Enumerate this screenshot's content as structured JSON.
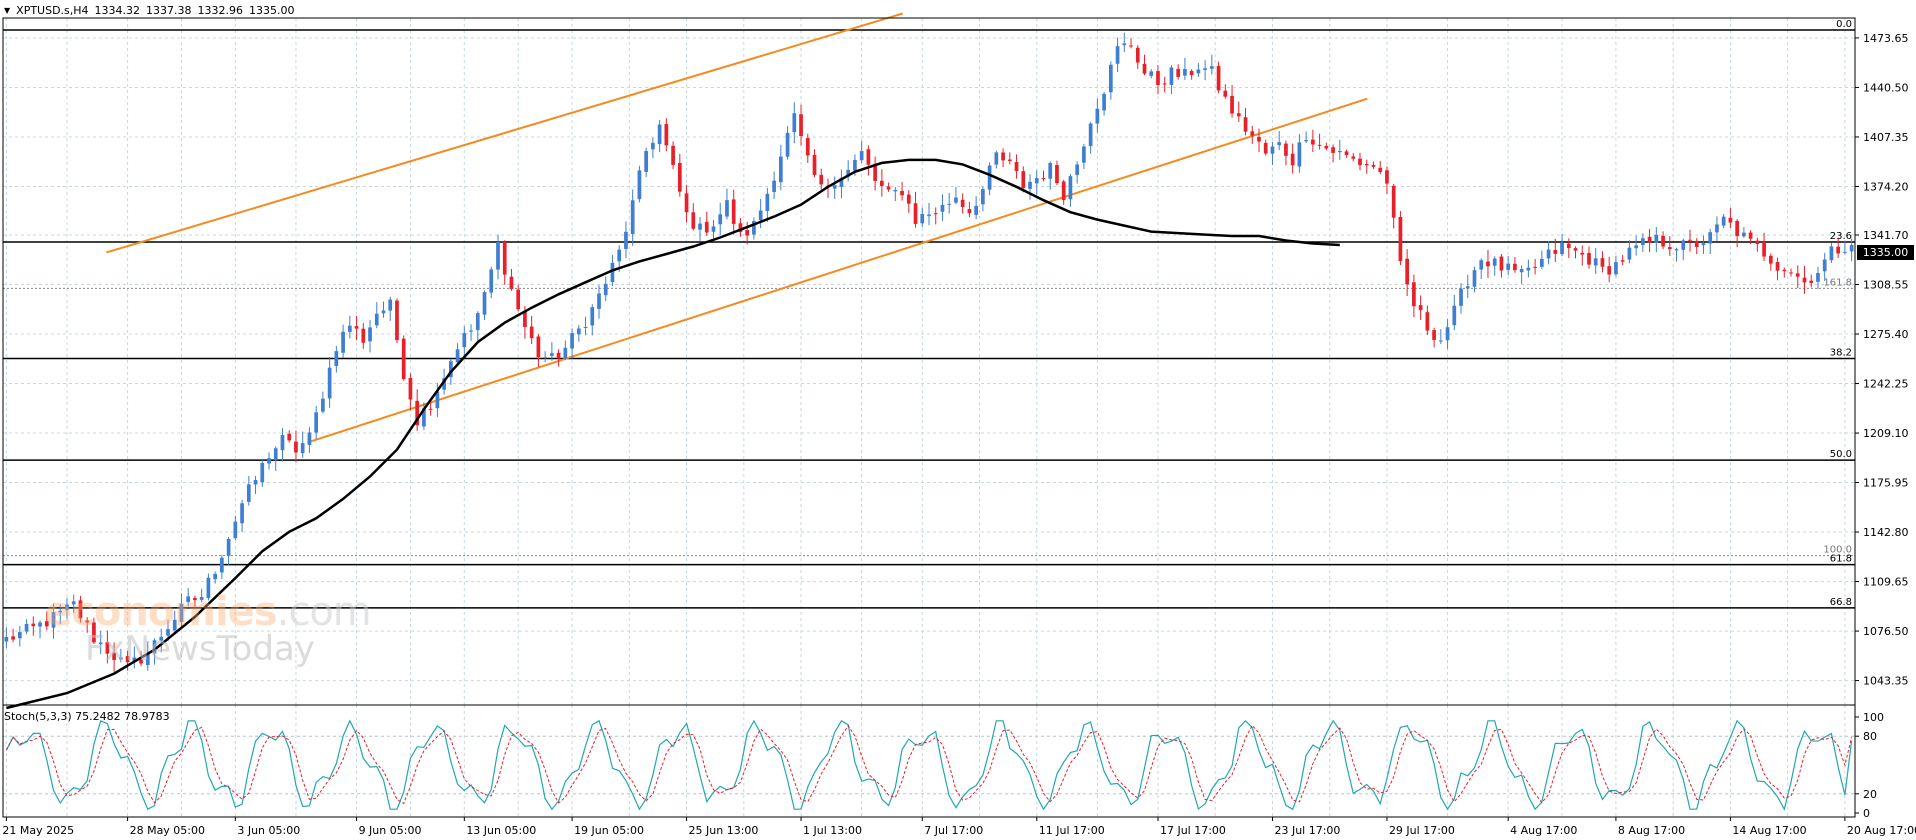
{
  "header": {
    "symbol": "XPTUSD.s,H4",
    "open": "1334.32",
    "high": "1337.38",
    "low": "1332.96",
    "close": "1335.00"
  },
  "current_price_label": "1335.00",
  "watermark": {
    "brand": "economies",
    "suffix": ".com",
    "sub": "FxNewsToday"
  },
  "chart_data": [
    {
      "type": "candlestick",
      "symbol": "XPTUSD.s",
      "timeframe": "H4",
      "ylim": [
        1027,
        1487
      ],
      "y_ticks": [
        "1473.65",
        "1440.50",
        "1407.35",
        "1374.20",
        "1341.70",
        "1308.55",
        "1275.40",
        "1242.25",
        "1209.10",
        "1175.95",
        "1142.80",
        "1109.65",
        "1076.50",
        "1043.35"
      ],
      "x_ticks": [
        "21 May 2025",
        "28 May 05:00",
        "3 Jun 05:00",
        "9 Jun 05:00",
        "13 Jun 05:00",
        "19 Jun 05:00",
        "25 Jun 13:00",
        "1 Jul 13:00",
        "7 Jul 17:00",
        "11 Jul 17:00",
        "17 Jul 17:00",
        "23 Jul 17:00",
        "29 Jul 17:00",
        "4 Aug 17:00",
        "8 Aug 17:00",
        "14 Aug 17:00",
        "20 Aug 17:00"
      ],
      "last_close": 1335.0,
      "close_path": [
        [
          0,
          1071
        ],
        [
          4,
          1078
        ],
        [
          8,
          1088
        ],
        [
          10,
          1094
        ],
        [
          13,
          1072
        ],
        [
          16,
          1060
        ],
        [
          18,
          1052
        ],
        [
          21,
          1062
        ],
        [
          24,
          1080
        ],
        [
          27,
          1096
        ],
        [
          29,
          1100
        ],
        [
          31,
          1118
        ],
        [
          33,
          1140
        ],
        [
          35,
          1162
        ],
        [
          37,
          1178
        ],
        [
          39,
          1195
        ],
        [
          41,
          1204
        ],
        [
          43,
          1198
        ],
        [
          45,
          1206
        ],
        [
          47,
          1236
        ],
        [
          49,
          1268
        ],
        [
          51,
          1282
        ],
        [
          53,
          1272
        ],
        [
          55,
          1290
        ],
        [
          57,
          1294
        ],
        [
          59,
          1250
        ],
        [
          61,
          1218
        ],
        [
          63,
          1230
        ],
        [
          65,
          1248
        ],
        [
          67,
          1268
        ],
        [
          69,
          1278
        ],
        [
          71,
          1300
        ],
        [
          73,
          1335
        ],
        [
          75,
          1305
        ],
        [
          77,
          1280
        ],
        [
          79,
          1262
        ],
        [
          81,
          1258
        ],
        [
          83,
          1266
        ],
        [
          85,
          1278
        ],
        [
          87,
          1292
        ],
        [
          89,
          1310
        ],
        [
          91,
          1330
        ],
        [
          93,
          1362
        ],
        [
          95,
          1398
        ],
        [
          97,
          1415
        ],
        [
          99,
          1385
        ],
        [
          101,
          1355
        ],
        [
          103,
          1345
        ],
        [
          105,
          1350
        ],
        [
          107,
          1362
        ],
        [
          109,
          1340
        ],
        [
          111,
          1348
        ],
        [
          113,
          1370
        ],
        [
          115,
          1396
        ],
        [
          117,
          1420
        ],
        [
          119,
          1390
        ],
        [
          121,
          1372
        ],
        [
          123,
          1380
        ],
        [
          125,
          1385
        ],
        [
          127,
          1396
        ],
        [
          129,
          1378
        ],
        [
          131,
          1368
        ],
        [
          133,
          1372
        ],
        [
          135,
          1352
        ],
        [
          137,
          1356
        ],
        [
          139,
          1360
        ],
        [
          141,
          1368
        ],
        [
          143,
          1358
        ],
        [
          145,
          1372
        ],
        [
          147,
          1395
        ],
        [
          149,
          1388
        ],
        [
          151,
          1375
        ],
        [
          153,
          1380
        ],
        [
          155,
          1386
        ],
        [
          157,
          1370
        ],
        [
          159,
          1390
        ],
        [
          161,
          1420
        ],
        [
          163,
          1440
        ],
        [
          165,
          1466
        ],
        [
          167,
          1470
        ],
        [
          169,
          1450
        ],
        [
          171,
          1444
        ],
        [
          173,
          1450
        ],
        [
          175,
          1448
        ],
        [
          177,
          1455
        ],
        [
          179,
          1450
        ],
        [
          181,
          1432
        ],
        [
          183,
          1418
        ],
        [
          185,
          1408
        ],
        [
          187,
          1396
        ],
        [
          189,
          1402
        ],
        [
          191,
          1392
        ],
        [
          193,
          1410
        ],
        [
          195,
          1402
        ],
        [
          197,
          1398
        ],
        [
          199,
          1394
        ],
        [
          201,
          1390
        ],
        [
          203,
          1388
        ],
        [
          205,
          1378
        ],
        [
          207,
          1320
        ],
        [
          209,
          1295
        ],
        [
          211,
          1280
        ],
        [
          213,
          1272
        ],
        [
          215,
          1290
        ],
        [
          217,
          1312
        ],
        [
          219,
          1326
        ],
        [
          221,
          1322
        ],
        [
          223,
          1318
        ],
        [
          225,
          1314
        ],
        [
          227,
          1320
        ],
        [
          229,
          1328
        ],
        [
          231,
          1334
        ],
        [
          233,
          1330
        ],
        [
          235,
          1326
        ],
        [
          237,
          1318
        ],
        [
          239,
          1322
        ],
        [
          241,
          1330
        ],
        [
          243,
          1335
        ],
        [
          245,
          1338
        ],
        [
          247,
          1336
        ],
        [
          249,
          1334
        ],
        [
          251,
          1336
        ],
        [
          253,
          1340
        ],
        [
          255,
          1352
        ],
        [
          257,
          1344
        ],
        [
          259,
          1336
        ],
        [
          261,
          1330
        ],
        [
          263,
          1322
        ],
        [
          265,
          1318
        ],
        [
          267,
          1310
        ],
        [
          269,
          1318
        ],
        [
          271,
          1330
        ],
        [
          273,
          1335
        ]
      ],
      "moving_average": {
        "color": "#000000",
        "points": [
          [
            0,
            1025
          ],
          [
            9,
            1035
          ],
          [
            16,
            1048
          ],
          [
            22,
            1064
          ],
          [
            28,
            1086
          ],
          [
            34,
            1112
          ],
          [
            38,
            1130
          ],
          [
            42,
            1143
          ],
          [
            46,
            1152
          ],
          [
            50,
            1165
          ],
          [
            54,
            1180
          ],
          [
            58,
            1198
          ],
          [
            62,
            1225
          ],
          [
            66,
            1250
          ],
          [
            70,
            1270
          ],
          [
            74,
            1283
          ],
          [
            78,
            1293
          ],
          [
            82,
            1302
          ],
          [
            86,
            1310
          ],
          [
            90,
            1318
          ],
          [
            94,
            1324
          ],
          [
            98,
            1329
          ],
          [
            102,
            1334
          ],
          [
            106,
            1340
          ],
          [
            110,
            1347
          ],
          [
            114,
            1354
          ],
          [
            118,
            1362
          ],
          [
            122,
            1374
          ],
          [
            126,
            1384
          ],
          [
            130,
            1390
          ],
          [
            134,
            1392
          ],
          [
            138,
            1392
          ],
          [
            142,
            1389
          ],
          [
            146,
            1382
          ],
          [
            150,
            1374
          ],
          [
            154,
            1365
          ],
          [
            158,
            1357
          ],
          [
            162,
            1352
          ],
          [
            166,
            1348
          ],
          [
            170,
            1344
          ],
          [
            174,
            1343
          ],
          [
            178,
            1342
          ],
          [
            182,
            1341
          ],
          [
            186,
            1341
          ],
          [
            190,
            1338
          ],
          [
            194,
            1336
          ],
          [
            198,
            1335
          ]
        ]
      },
      "channel_lines": {
        "color": "#f58a1f",
        "lines": [
          {
            "from": [
              0,
              1330
            ],
            "to": [
              142,
              1490
            ]
          },
          {
            "from": [
              30,
              1203
            ],
            "to": [
              211,
              1433
            ]
          }
        ]
      },
      "fibonacci_levels": [
        {
          "label": "0.0",
          "price": 1479,
          "style": "solid"
        },
        {
          "label": "23.6",
          "price": 1337,
          "style": "solid"
        },
        {
          "label": "161.8",
          "price": 1306,
          "style": "dotted"
        },
        {
          "label": "38.2",
          "price": 1259,
          "style": "solid"
        },
        {
          "label": "50.0",
          "price": 1191,
          "style": "solid"
        },
        {
          "label": "100.0",
          "price": 1127,
          "style": "dotted"
        },
        {
          "label": "61.8",
          "price": 1121,
          "style": "solid"
        },
        {
          "label": "66.8",
          "price": 1092,
          "style": "solid"
        }
      ],
      "colors": {
        "up": "#3f7fd1",
        "down": "#e8202a",
        "grid": "#c8d8e0"
      }
    },
    {
      "type": "line",
      "title": "Stoch(5,3,3) 75.2482 78.9783",
      "indicator": "Stoch(5,3,3)",
      "k_value": 75.2482,
      "d_value": 78.9783,
      "ylim": [
        0,
        100
      ],
      "y_ticks": [
        "100",
        "80",
        "20",
        "0"
      ],
      "levels": [
        80,
        20
      ],
      "series": [
        {
          "name": "%K",
          "color": "#20a8b0"
        },
        {
          "name": "%D",
          "color": "#e8202a",
          "style": "dashed"
        }
      ]
    }
  ]
}
